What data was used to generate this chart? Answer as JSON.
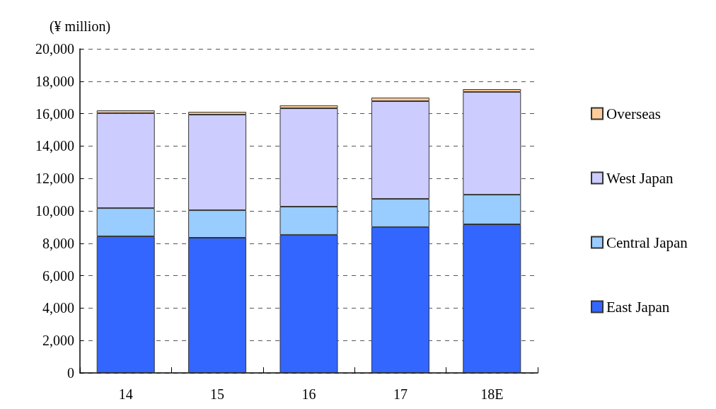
{
  "chart_data": {
    "type": "bar",
    "stacked": true,
    "ylabel": "(¥ million)",
    "categories": [
      "14",
      "15",
      "16",
      "17",
      "18E"
    ],
    "series": [
      {
        "name": "East Japan",
        "color": "#3366ff",
        "values": [
          8430,
          8340,
          8520,
          9000,
          9170
        ]
      },
      {
        "name": "Central Japan",
        "color": "#99ccff",
        "values": [
          1740,
          1700,
          1740,
          1740,
          1830
        ]
      },
      {
        "name": "West Japan",
        "color": "#ccccff",
        "values": [
          5860,
          5900,
          6070,
          6030,
          6340
        ]
      },
      {
        "name": "Overseas",
        "color": "#ffcc99",
        "values": [
          170,
          170,
          180,
          220,
          170
        ]
      }
    ],
    "ylim": [
      0,
      20000
    ],
    "yticks": [
      0,
      {
        "value": 2000,
        "label": "2,000"
      },
      {
        "value": 4000,
        "label": "4,000"
      },
      {
        "value": 6000,
        "label": "6,000"
      },
      {
        "value": 8000,
        "label": "8,000"
      },
      {
        "value": 10000,
        "label": "10,000"
      },
      {
        "value": 12000,
        "label": "12,000"
      },
      {
        "value": 14000,
        "label": "14,000"
      },
      {
        "value": 16000,
        "label": "16,000"
      },
      {
        "value": 18000,
        "label": "18,000"
      },
      {
        "value": 20000,
        "label": "20,000"
      }
    ],
    "grid": "y",
    "legend": "right"
  }
}
